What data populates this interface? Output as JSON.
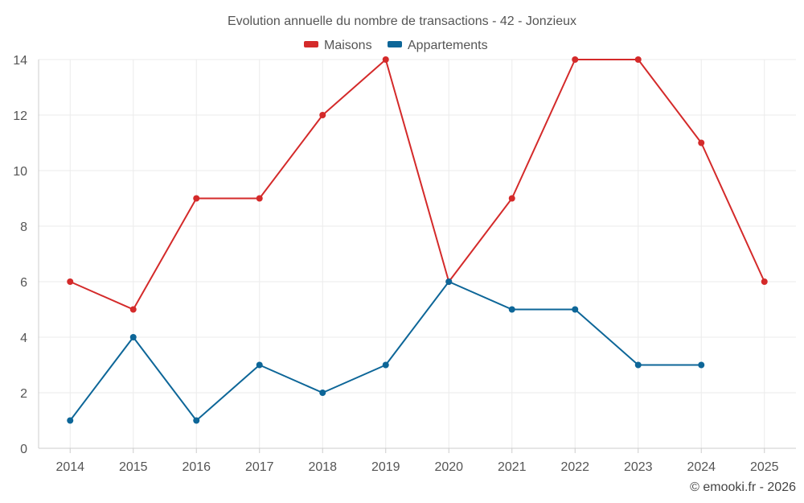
{
  "chart_data": {
    "type": "line",
    "title": "Evolution annuelle du nombre de transactions - 42 - Jonzieux",
    "categories": [
      "2014",
      "2015",
      "2016",
      "2017",
      "2018",
      "2019",
      "2020",
      "2021",
      "2022",
      "2023",
      "2024",
      "2025"
    ],
    "series": [
      {
        "name": "Maisons",
        "color": "#d42a2a",
        "values": [
          6,
          5,
          9,
          9,
          12,
          14,
          6,
          9,
          14,
          14,
          11,
          6
        ]
      },
      {
        "name": "Appartements",
        "color": "#0d6698",
        "values": [
          1,
          4,
          1,
          3,
          2,
          3,
          6,
          5,
          5,
          3,
          3,
          null
        ]
      }
    ],
    "yticks": [
      0,
      2,
      4,
      6,
      8,
      10,
      12,
      14
    ],
    "ylim": [
      0,
      14
    ],
    "xlabel": "",
    "ylabel": "",
    "grid": true,
    "legend_position": "top-center"
  },
  "credit": "© emooki.fr - 2026"
}
